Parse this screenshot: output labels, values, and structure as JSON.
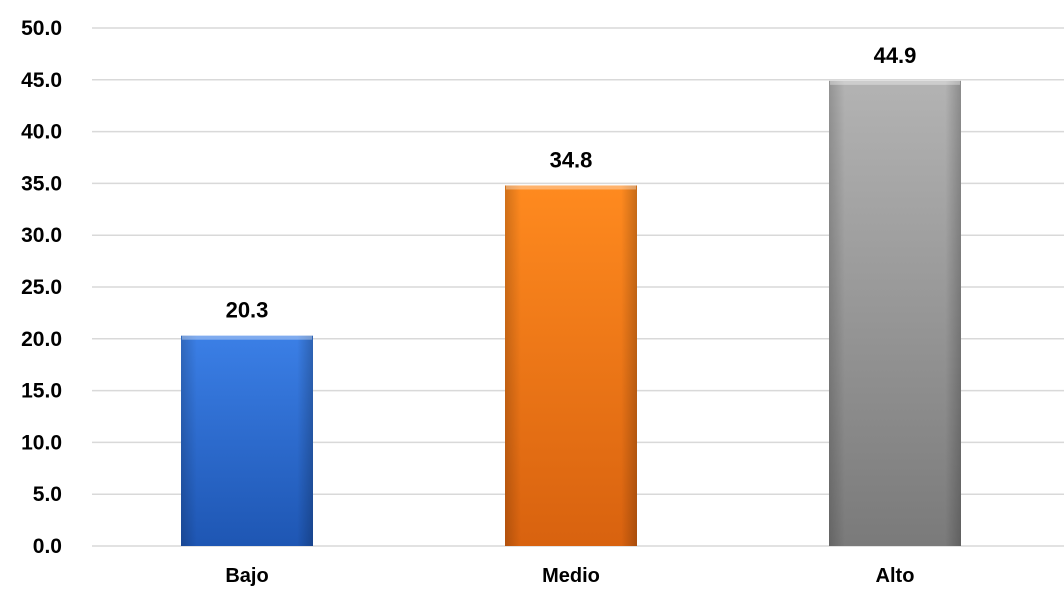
{
  "chart_data": {
    "type": "bar",
    "categories": [
      "Bajo",
      "Medio",
      "Alto"
    ],
    "values": [
      20.3,
      34.8,
      44.9
    ],
    "value_labels": [
      "20.3",
      "34.8",
      "44.9"
    ],
    "ylim": [
      0,
      50
    ],
    "y_ticks": [
      "0.0",
      "5.0",
      "10.0",
      "15.0",
      "20.0",
      "25.0",
      "30.0",
      "35.0",
      "40.0",
      "45.0",
      "50.0"
    ],
    "title": "",
    "xlabel": "",
    "ylabel": "",
    "grid": true,
    "legend": "none",
    "bar_colors": [
      "#2e6fd8",
      "#f47c1a",
      "#a6a6a6"
    ]
  }
}
